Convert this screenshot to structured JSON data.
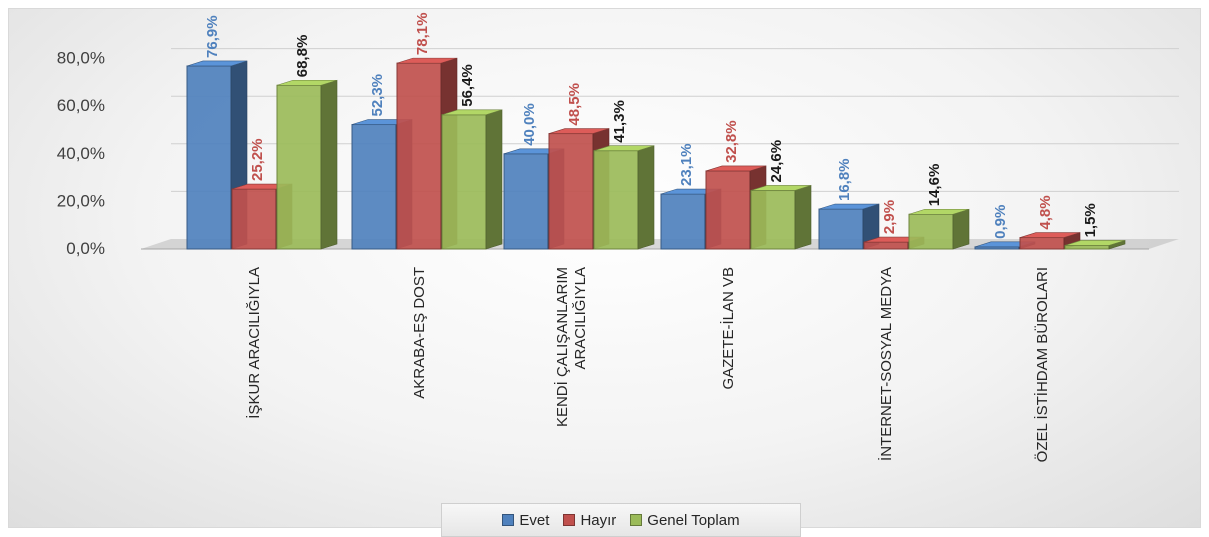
{
  "chart_data": {
    "type": "bar",
    "categories": [
      "İŞKUR ARACILIĞIYLA",
      "AKRABA-EŞ DOST",
      "KENDİ ÇALIŞANLARIM ARACILIĞIYLA",
      "GAZETE-İLAN VB",
      "İNTERNET-SOSYAL MEDYA",
      "ÖZEL İSTİHDAM BÜROLARI"
    ],
    "series": [
      {
        "name": "Evet",
        "color": "#4f81bd",
        "values": [
          76.9,
          52.3,
          40.0,
          23.1,
          16.8,
          0.9
        ],
        "labels": [
          "76,9%",
          "52,3%",
          "40,0%",
          "23,1%",
          "16,8%",
          "0,9%"
        ]
      },
      {
        "name": "Hayır",
        "color": "#c0504d",
        "values": [
          25.2,
          78.1,
          48.5,
          32.8,
          2.9,
          4.8
        ],
        "labels": [
          "25,2%",
          "78,1%",
          "48,5%",
          "32,8%",
          "2,9%",
          "4,8%"
        ]
      },
      {
        "name": "Genel Toplam",
        "color": "#9bbb59",
        "values": [
          68.8,
          56.4,
          41.3,
          24.6,
          14.6,
          1.5
        ],
        "labels": [
          "68,8%",
          "56,4%",
          "41,3%",
          "24,6%",
          "14,6%",
          "1,5%"
        ]
      }
    ],
    "ylim": [
      0,
      80
    ],
    "yticks": [
      "0,0%",
      "20,0%",
      "40,0%",
      "60,0%",
      "80,0%"
    ],
    "label_colors": [
      "#4f81bd",
      "#c0504d",
      "#1a1a1a"
    ],
    "grid": true,
    "legend_position": "bottom"
  }
}
